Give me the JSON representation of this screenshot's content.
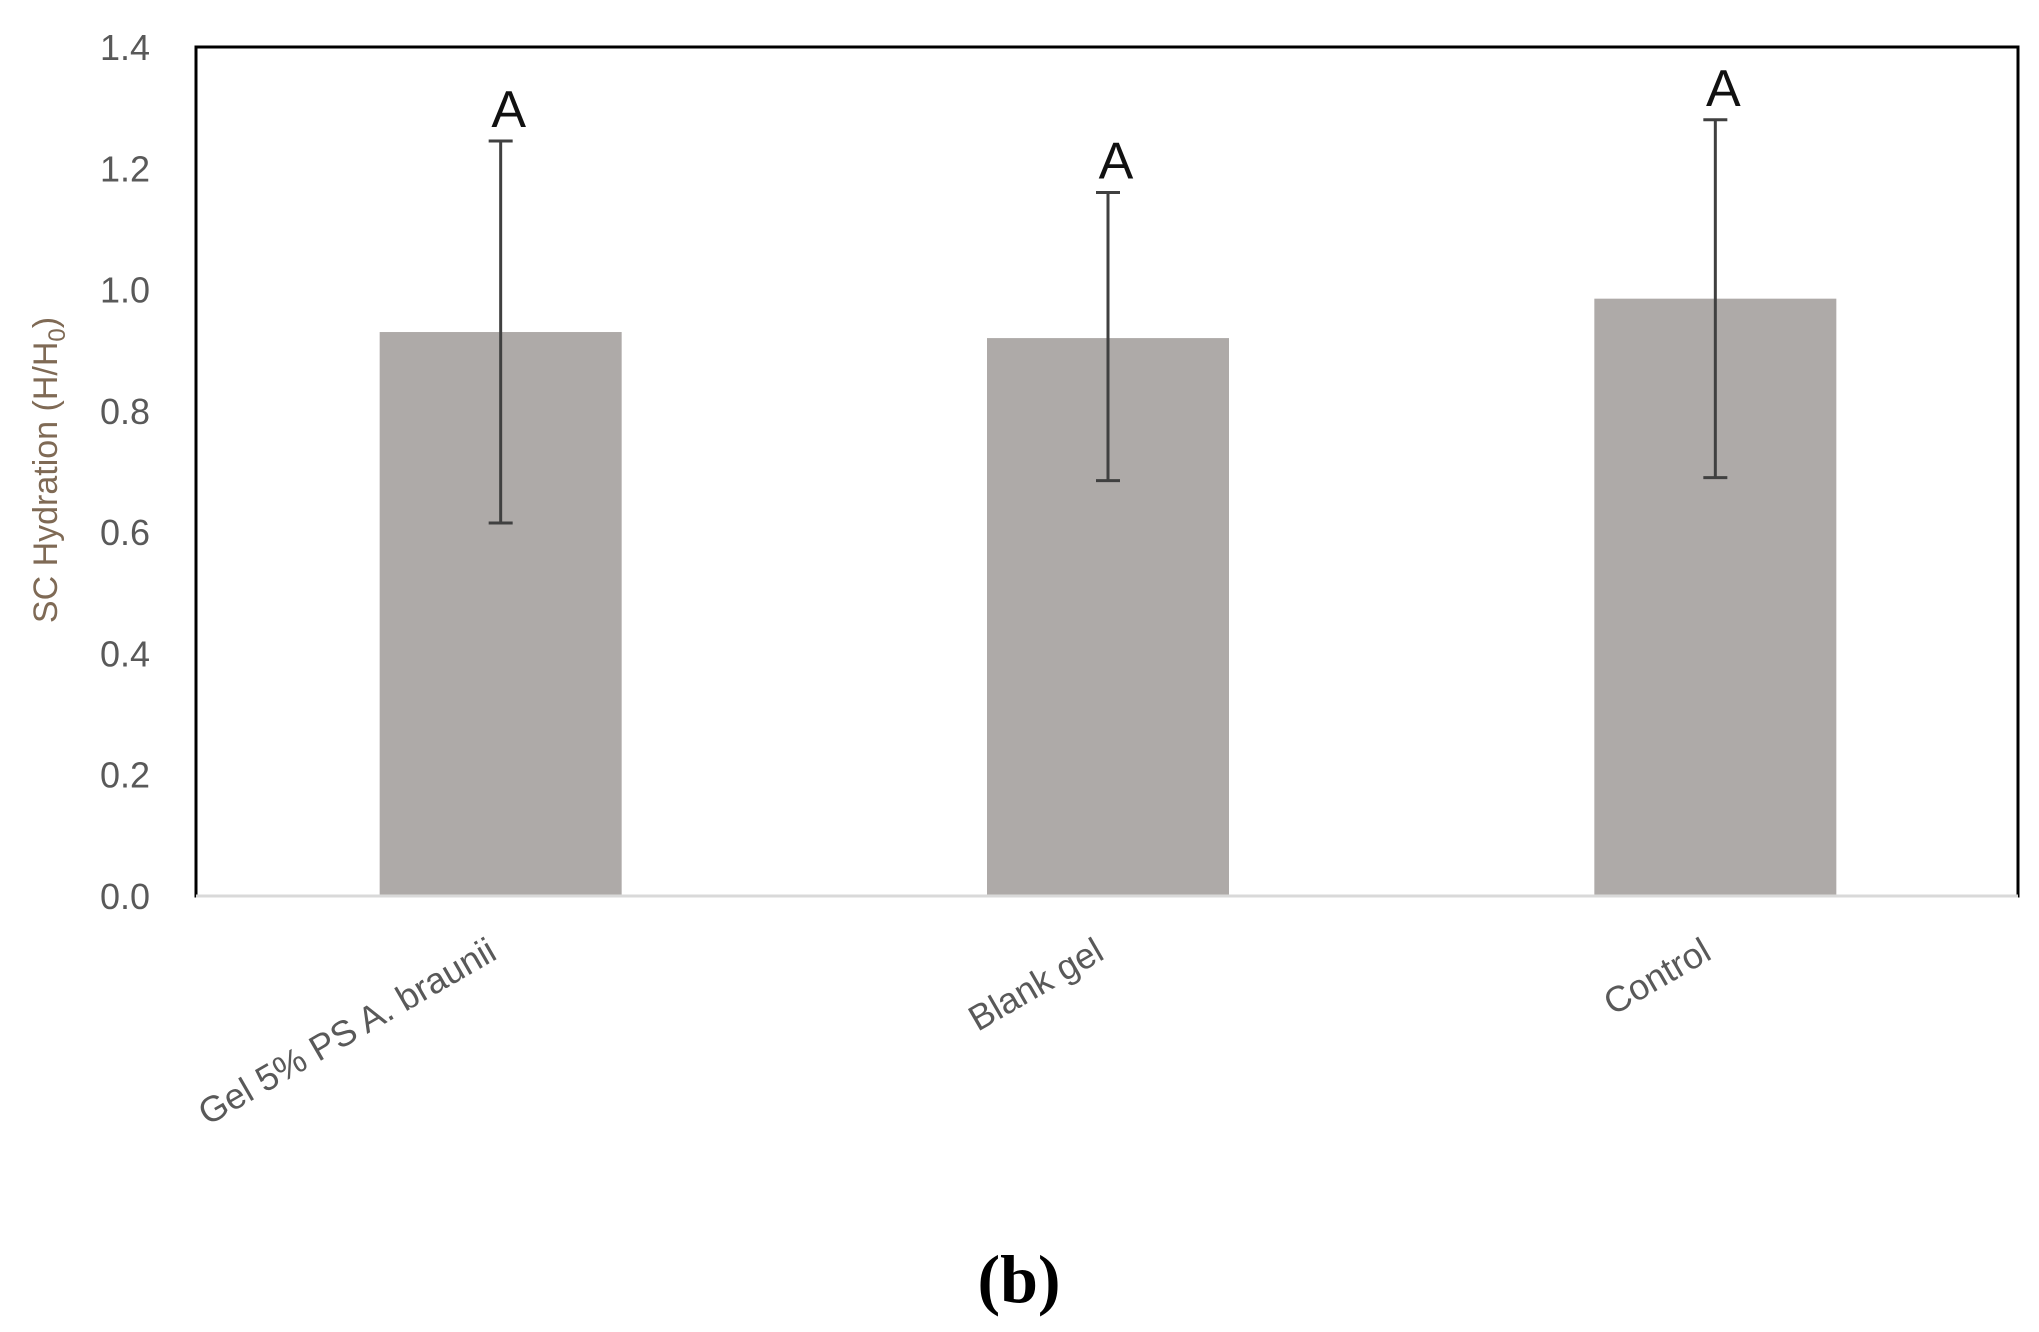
{
  "chart_data": {
    "type": "bar",
    "categories": [
      "Gel 5% PS A. braunii",
      "Blank gel",
      "Control"
    ],
    "values": [
      0.93,
      0.92,
      0.985
    ],
    "error_low": [
      0.615,
      0.685,
      0.69
    ],
    "error_high": [
      1.245,
      1.16,
      1.28
    ],
    "significance_labels": [
      "A",
      "A",
      "A"
    ],
    "ylabel_main": "SC Hydration (H/H",
    "ylabel_sub": "0",
    "ylabel_close": ")",
    "ylim": [
      0,
      1.4
    ],
    "yticks": [
      "0.0",
      "0.2",
      "0.4",
      "0.6",
      "0.8",
      "1.0",
      "1.2",
      "1.4"
    ],
    "bar_color": "#aeaaa8",
    "errorbar_color": "#404040",
    "panel_label": "(b)",
    "grid": false
  }
}
